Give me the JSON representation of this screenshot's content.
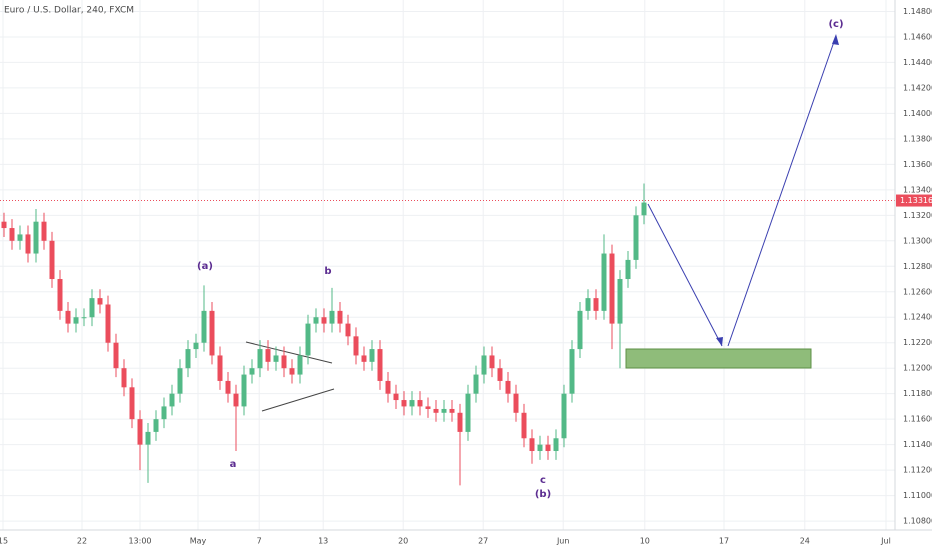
{
  "chart_data": {
    "type": "candlestick",
    "title": "Euro / U.S. Dollar, 240, FXCM",
    "up_color": "#53b987",
    "down_color": "#eb4d5c",
    "grid": true,
    "x": [
      0,
      1,
      2,
      3,
      4,
      5,
      6,
      7,
      8,
      9,
      10,
      11,
      12,
      13,
      14,
      15,
      16,
      17,
      18,
      19,
      20,
      21,
      22,
      23,
      24,
      25,
      26,
      27,
      28,
      29,
      30,
      31,
      32,
      33,
      34,
      35,
      36,
      37,
      38,
      39,
      40,
      41,
      42,
      43,
      44,
      45,
      46,
      47,
      48,
      49,
      50,
      51,
      52,
      53,
      54,
      55,
      56,
      57,
      58,
      59,
      60,
      61,
      62,
      63,
      64,
      65,
      66,
      67,
      68,
      69,
      70,
      71,
      72,
      73,
      74,
      75,
      76,
      77,
      78,
      79,
      80
    ],
    "open": [
      1.1315,
      1.131,
      1.13,
      1.1305,
      1.129,
      1.1315,
      1.13,
      1.127,
      1.1245,
      1.1235,
      1.124,
      1.124,
      1.1255,
      1.125,
      1.122,
      1.12,
      1.1185,
      1.116,
      1.114,
      1.115,
      1.116,
      1.117,
      1.118,
      1.12,
      1.1215,
      1.122,
      1.1245,
      1.121,
      1.119,
      1.118,
      1.117,
      1.1195,
      1.12,
      1.1215,
      1.1205,
      1.121,
      1.12,
      1.1195,
      1.121,
      1.1235,
      1.124,
      1.1235,
      1.1245,
      1.1235,
      1.1225,
      1.121,
      1.1205,
      1.1215,
      1.119,
      1.118,
      1.1175,
      1.117,
      1.1175,
      1.117,
      1.1168,
      1.1165,
      1.1168,
      1.1165,
      1.115,
      1.118,
      1.1195,
      1.121,
      1.12,
      1.119,
      1.118,
      1.1165,
      1.1145,
      1.1135,
      1.114,
      1.1135,
      1.1145,
      1.118,
      1.1215,
      1.1245,
      1.1255,
      1.1245,
      1.129,
      1.1235,
      1.127,
      1.1285,
      1.132
    ],
    "high": [
      1.1322,
      1.1317,
      1.1312,
      1.1312,
      1.1325,
      1.1322,
      1.1307,
      1.1277,
      1.1252,
      1.1247,
      1.1247,
      1.1262,
      1.1262,
      1.1257,
      1.1227,
      1.1207,
      1.1192,
      1.1167,
      1.1157,
      1.1167,
      1.1177,
      1.1187,
      1.1207,
      1.1222,
      1.1227,
      1.1265,
      1.1252,
      1.1217,
      1.1197,
      1.1187,
      1.1202,
      1.1207,
      1.1222,
      1.1222,
      1.1217,
      1.1217,
      1.1207,
      1.1217,
      1.1242,
      1.1247,
      1.1247,
      1.1263,
      1.1252,
      1.1242,
      1.1232,
      1.1217,
      1.1222,
      1.1222,
      1.1197,
      1.1187,
      1.1182,
      1.1182,
      1.1182,
      1.1177,
      1.1175,
      1.1175,
      1.1175,
      1.1172,
      1.1187,
      1.1202,
      1.1217,
      1.1217,
      1.1207,
      1.1197,
      1.1187,
      1.1172,
      1.1152,
      1.1147,
      1.1147,
      1.1152,
      1.1187,
      1.1222,
      1.1252,
      1.1262,
      1.1262,
      1.1305,
      1.1297,
      1.1277,
      1.1292,
      1.1327,
      1.1345
    ],
    "low": [
      1.1303,
      1.1293,
      1.1293,
      1.1283,
      1.1283,
      1.1293,
      1.1263,
      1.1238,
      1.1228,
      1.1228,
      1.1233,
      1.1233,
      1.1243,
      1.1213,
      1.1193,
      1.1178,
      1.1153,
      1.112,
      1.111,
      1.1143,
      1.1153,
      1.1163,
      1.1173,
      1.1193,
      1.1208,
      1.1213,
      1.1203,
      1.1183,
      1.1173,
      1.1135,
      1.1163,
      1.1188,
      1.1193,
      1.1198,
      1.1198,
      1.1193,
      1.1188,
      1.1188,
      1.1203,
      1.1228,
      1.1228,
      1.1228,
      1.1228,
      1.1218,
      1.1203,
      1.1198,
      1.1198,
      1.1183,
      1.1173,
      1.1168,
      1.1163,
      1.1163,
      1.1163,
      1.1161,
      1.1158,
      1.1158,
      1.1158,
      1.1108,
      1.1143,
      1.1173,
      1.1188,
      1.1193,
      1.1183,
      1.1173,
      1.1158,
      1.1138,
      1.1125,
      1.1128,
      1.1128,
      1.1128,
      1.1138,
      1.1173,
      1.1208,
      1.1238,
      1.1238,
      1.1238,
      1.1215,
      1.12,
      1.1263,
      1.1278,
      1.1313
    ],
    "close": [
      1.131,
      1.13,
      1.1305,
      1.129,
      1.1315,
      1.13,
      1.127,
      1.1245,
      1.1235,
      1.124,
      1.124,
      1.1255,
      1.125,
      1.122,
      1.12,
      1.1185,
      1.116,
      1.114,
      1.115,
      1.116,
      1.117,
      1.118,
      1.12,
      1.1215,
      1.122,
      1.1245,
      1.121,
      1.119,
      1.118,
      1.117,
      1.1195,
      1.12,
      1.1215,
      1.1205,
      1.121,
      1.12,
      1.1195,
      1.121,
      1.1235,
      1.124,
      1.1235,
      1.1245,
      1.1235,
      1.1225,
      1.121,
      1.1205,
      1.1215,
      1.119,
      1.118,
      1.1175,
      1.117,
      1.1175,
      1.117,
      1.1168,
      1.1165,
      1.1168,
      1.1165,
      1.115,
      1.118,
      1.1195,
      1.121,
      1.12,
      1.119,
      1.118,
      1.1165,
      1.1145,
      1.1135,
      1.114,
      1.1135,
      1.1145,
      1.118,
      1.1215,
      1.1245,
      1.1255,
      1.1245,
      1.129,
      1.1235,
      1.127,
      1.1285,
      1.132,
      1.133
    ],
    "last_price": 1.13316,
    "xlim": [
      -0.5,
      111.375
    ],
    "xticks": [
      {
        "value": -0.125,
        "label": "15"
      },
      {
        "value": 9.75,
        "label": "22"
      },
      {
        "value": 17,
        "label": "13:00"
      },
      {
        "value": 24.25,
        "label": "May"
      },
      {
        "value": 31.9,
        "label": "7"
      },
      {
        "value": 39.9,
        "label": "13"
      },
      {
        "value": 49.9,
        "label": "20"
      },
      {
        "value": 59.9,
        "label": "27"
      },
      {
        "value": 69.9,
        "label": "Jun"
      },
      {
        "value": 80.1,
        "label": "10"
      },
      {
        "value": 90,
        "label": "17"
      },
      {
        "value": 100.1,
        "label": "24"
      },
      {
        "value": 110.25,
        "label": "Jul"
      }
    ],
    "ylim": [
      1.1073,
      1.1489
    ],
    "yticks": [
      {
        "value": 1.108,
        "label": "1.10800"
      },
      {
        "value": 1.11,
        "label": "1.11000"
      },
      {
        "value": 1.112,
        "label": "1.11200"
      },
      {
        "value": 1.114,
        "label": "1.11400"
      },
      {
        "value": 1.116,
        "label": "1.11600"
      },
      {
        "value": 1.118,
        "label": "1.11800"
      },
      {
        "value": 1.12,
        "label": "1.12000"
      },
      {
        "value": 1.122,
        "label": "1.12200"
      },
      {
        "value": 1.124,
        "label": "1.12400"
      },
      {
        "value": 1.126,
        "label": "1.12600"
      },
      {
        "value": 1.128,
        "label": "1.12800"
      },
      {
        "value": 1.13,
        "label": "1.13000"
      },
      {
        "value": 1.132,
        "label": "1.13200"
      },
      {
        "value": 1.134,
        "label": "1.13400"
      },
      {
        "value": 1.136,
        "label": "1.13600"
      },
      {
        "value": 1.138,
        "label": "1.13800"
      },
      {
        "value": 1.14,
        "label": "1.14000"
      },
      {
        "value": 1.142,
        "label": "1.14200"
      },
      {
        "value": 1.144,
        "label": "1.14400"
      },
      {
        "value": 1.146,
        "label": "1.14600"
      },
      {
        "value": 1.148,
        "label": "1.14800"
      }
    ],
    "annotations": [
      "(a)",
      "a",
      "b",
      "c",
      "(b)",
      "(c)"
    ]
  }
}
